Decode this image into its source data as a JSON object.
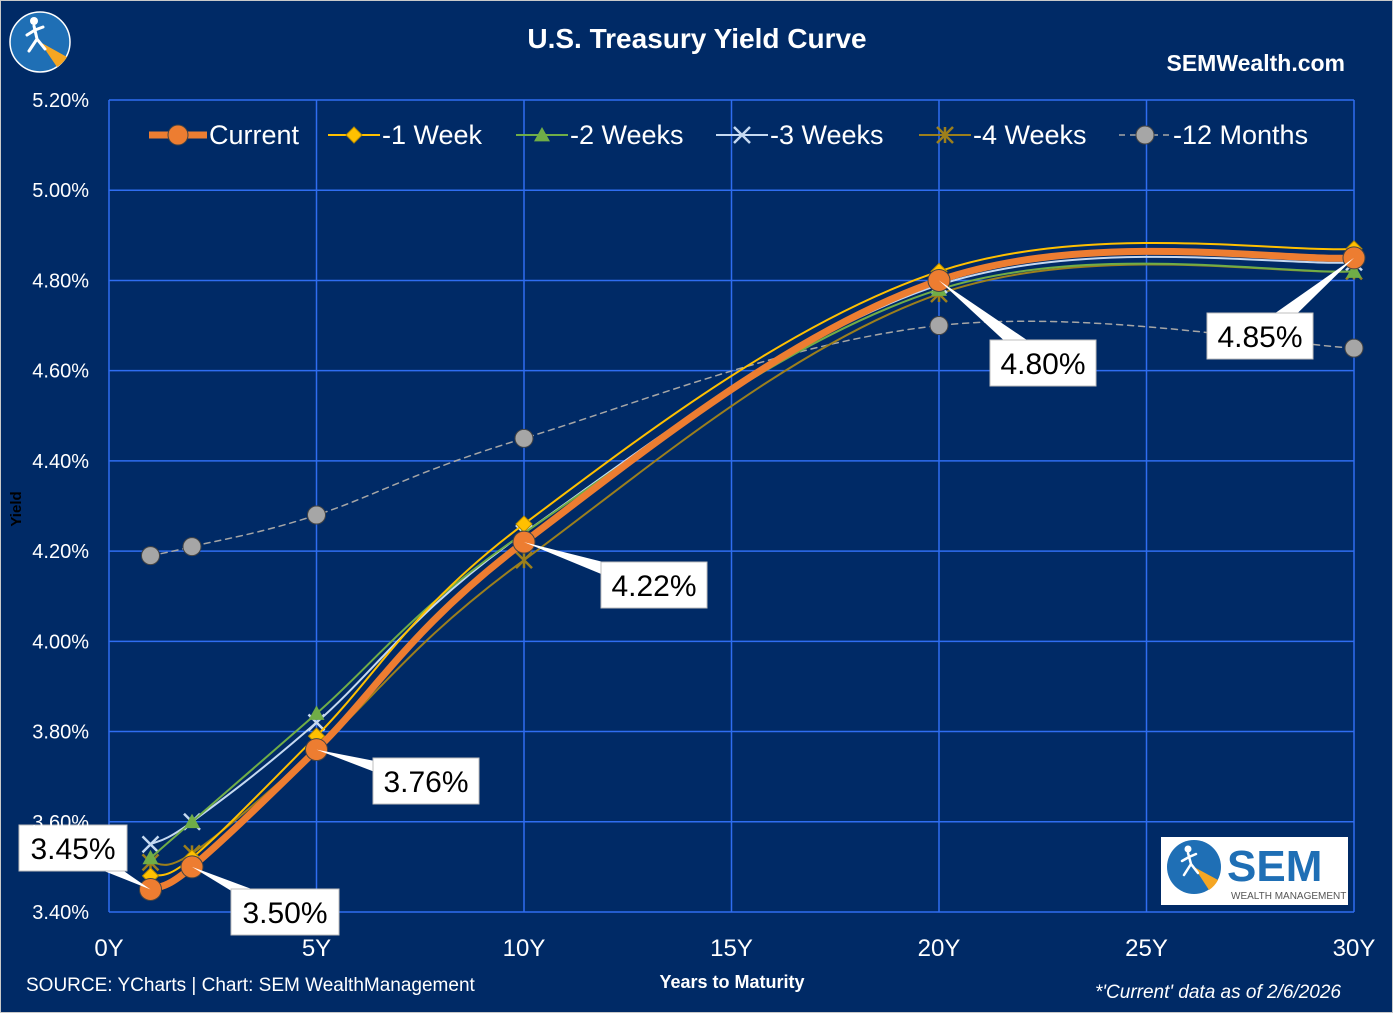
{
  "header": {
    "title": "U.S. Treasury Yield Curve",
    "brand": "SEMWealth.com"
  },
  "footer": {
    "source": "SOURCE: YCharts | Chart: SEM WealthManagement",
    "note": "*'Current' data as of 2/6/2026"
  },
  "logo": {
    "badge_text": "SEM",
    "badge_subtext": "WEALTH MANAGEMENT"
  },
  "icons": [
    "hiker-logo-icon",
    "sem-logo-icon"
  ],
  "chart_data": {
    "type": "line",
    "title": "U.S. Treasury Yield Curve",
    "xlabel": "Years to Maturity",
    "ylabel": "Yield",
    "xlim": [
      0,
      30
    ],
    "ylim": [
      3.4,
      5.2
    ],
    "x_ticks": [
      {
        "value": 0,
        "label": "0Y"
      },
      {
        "value": 5,
        "label": "5Y"
      },
      {
        "value": 10,
        "label": "10Y"
      },
      {
        "value": 15,
        "label": "15Y"
      },
      {
        "value": 20,
        "label": "20Y"
      },
      {
        "value": 25,
        "label": "25Y"
      },
      {
        "value": 30,
        "label": "30Y"
      }
    ],
    "y_ticks": [
      {
        "value": 3.4,
        "label": "3.40%"
      },
      {
        "value": 3.6,
        "label": "3.60%"
      },
      {
        "value": 3.8,
        "label": "3.80%"
      },
      {
        "value": 4.0,
        "label": "4.00%"
      },
      {
        "value": 4.2,
        "label": "4.20%"
      },
      {
        "value": 4.4,
        "label": "4.40%"
      },
      {
        "value": 4.6,
        "label": "4.60%"
      },
      {
        "value": 4.8,
        "label": "4.80%"
      },
      {
        "value": 5.0,
        "label": "5.00%"
      },
      {
        "value": 5.2,
        "label": "5.20%"
      }
    ],
    "grid": true,
    "legend_position": "top",
    "x": [
      1,
      2,
      5,
      10,
      20,
      30
    ],
    "series": [
      {
        "name": "Current",
        "color": "#ed7d31",
        "marker": "circle",
        "dashed": false,
        "values": [
          3.45,
          3.5,
          3.76,
          4.22,
          4.8,
          4.85
        ]
      },
      {
        "name": "-1 Week",
        "color": "#ffc000",
        "marker": "diamond",
        "dashed": false,
        "values": [
          3.48,
          3.52,
          3.79,
          4.26,
          4.82,
          4.87
        ]
      },
      {
        "name": "-2 Weeks",
        "color": "#70ad47",
        "marker": "triangle",
        "dashed": false,
        "values": [
          3.52,
          3.6,
          3.84,
          4.24,
          4.78,
          4.82
        ]
      },
      {
        "name": "-3 Weeks",
        "color": "#c5d9f1",
        "marker": "x",
        "dashed": false,
        "values": [
          3.55,
          3.6,
          3.82,
          4.24,
          4.79,
          4.84
        ]
      },
      {
        "name": "-4 Weeks",
        "color": "#9c7f1c",
        "marker": "star",
        "dashed": false,
        "values": [
          3.51,
          3.53,
          3.76,
          4.18,
          4.77,
          4.82
        ]
      },
      {
        "name": "-12 Months",
        "color": "#a6a6a6",
        "marker": "circle",
        "dashed": true,
        "values": [
          4.19,
          4.21,
          4.28,
          4.45,
          4.7,
          4.65
        ]
      }
    ],
    "annotations": [
      {
        "x": 1,
        "y": 3.45,
        "text": "3.45%"
      },
      {
        "x": 2,
        "y": 3.5,
        "text": "3.50%"
      },
      {
        "x": 5,
        "y": 3.76,
        "text": "3.76%"
      },
      {
        "x": 10,
        "y": 4.22,
        "text": "4.22%"
      },
      {
        "x": 20,
        "y": 4.8,
        "text": "4.80%"
      },
      {
        "x": 30,
        "y": 4.85,
        "text": "4.85%"
      }
    ]
  }
}
